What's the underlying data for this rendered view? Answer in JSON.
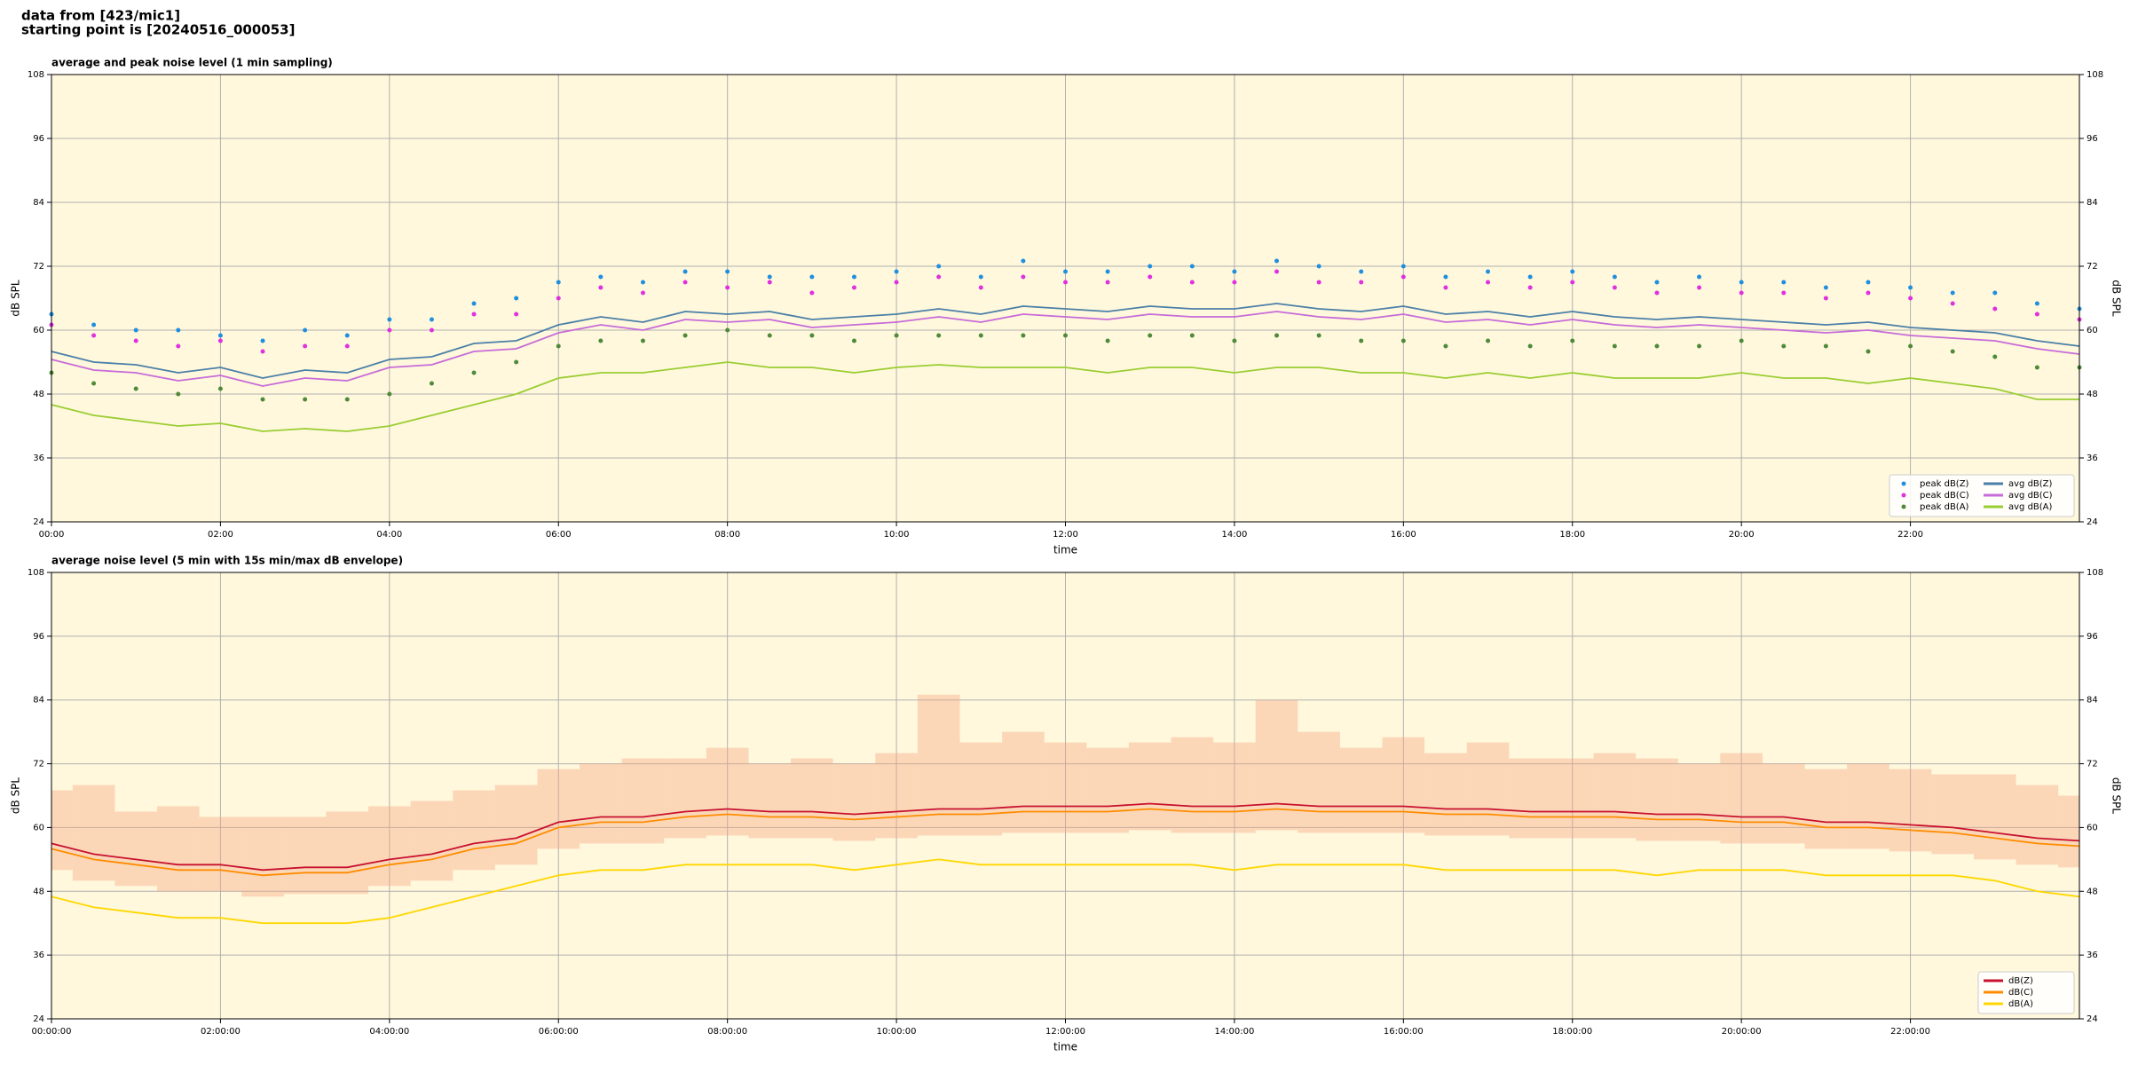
{
  "header": {
    "line1": "data from [423/mic1]",
    "line2": "starting point is [20240516_000053]"
  },
  "chart_data": [
    {
      "type": "line",
      "title": "average and peak noise level (1 min sampling)",
      "xlabel": "time",
      "ylabel": "dB SPL",
      "x": [
        0,
        0.5,
        1,
        1.5,
        2,
        2.5,
        3,
        3.5,
        4,
        4.5,
        5,
        5.5,
        6,
        6.5,
        7,
        7.5,
        8,
        8.5,
        9,
        9.5,
        10,
        10.5,
        11,
        11.5,
        12,
        12.5,
        13,
        13.5,
        14,
        14.5,
        15,
        15.5,
        16,
        16.5,
        17,
        17.5,
        18,
        18.5,
        19,
        19.5,
        20,
        20.5,
        21,
        21.5,
        22,
        22.5,
        23,
        23.5,
        24
      ],
      "xlim": [
        0,
        24
      ],
      "xticks": [
        {
          "value": 0,
          "label": "00:00"
        },
        {
          "value": 2,
          "label": "02:00"
        },
        {
          "value": 4,
          "label": "04:00"
        },
        {
          "value": 6,
          "label": "06:00"
        },
        {
          "value": 8,
          "label": "08:00"
        },
        {
          "value": 10,
          "label": "10:00"
        },
        {
          "value": 12,
          "label": "12:00"
        },
        {
          "value": 14,
          "label": "14:00"
        },
        {
          "value": 16,
          "label": "16:00"
        },
        {
          "value": 18,
          "label": "18:00"
        },
        {
          "value": 20,
          "label": "20:00"
        },
        {
          "value": 22,
          "label": "22:00"
        }
      ],
      "ylim": [
        24,
        108
      ],
      "yticks": [
        24,
        36,
        48,
        60,
        72,
        84,
        96,
        108
      ],
      "grid": true,
      "background": "#fff8dc",
      "legend": "lower right",
      "legend_columns": 2,
      "series": [
        {
          "name": "peak dB(Z)",
          "type": "scatter",
          "color": "#1f8fe0",
          "values": [
            63,
            61,
            60,
            60,
            59,
            58,
            60,
            59,
            62,
            62,
            65,
            66,
            69,
            70,
            69,
            71,
            71,
            70,
            70,
            70,
            71,
            72,
            70,
            73,
            71,
            71,
            72,
            72,
            71,
            73,
            72,
            71,
            72,
            70,
            71,
            70,
            71,
            70,
            69,
            70,
            69,
            69,
            68,
            69,
            68,
            67,
            67,
            65,
            64
          ]
        },
        {
          "name": "peak dB(C)",
          "type": "scatter",
          "color": "#e030e0",
          "values": [
            61,
            59,
            58,
            57,
            58,
            56,
            57,
            57,
            60,
            60,
            63,
            63,
            66,
            68,
            67,
            69,
            68,
            69,
            67,
            68,
            69,
            70,
            68,
            70,
            69,
            69,
            70,
            69,
            69,
            71,
            69,
            69,
            70,
            68,
            69,
            68,
            69,
            68,
            67,
            68,
            67,
            67,
            66,
            67,
            66,
            65,
            64,
            63,
            62
          ]
        },
        {
          "name": "peak dB(A)",
          "type": "scatter",
          "color": "#4f8a3a",
          "values": [
            52,
            50,
            49,
            48,
            49,
            47,
            47,
            47,
            48,
            50,
            52,
            54,
            57,
            58,
            58,
            59,
            60,
            59,
            59,
            58,
            59,
            59,
            59,
            59,
            59,
            58,
            59,
            59,
            58,
            59,
            59,
            58,
            58,
            57,
            58,
            57,
            58,
            57,
            57,
            57,
            58,
            57,
            57,
            56,
            57,
            56,
            55,
            53,
            53
          ]
        },
        {
          "name": "avg dB(Z)",
          "type": "line",
          "color": "#4a7fa8",
          "values": [
            56,
            54,
            53.5,
            52,
            53,
            51,
            52.5,
            52,
            54.5,
            55,
            57.5,
            58,
            61,
            62.5,
            61.5,
            63.5,
            63,
            63.5,
            62,
            62.5,
            63,
            64,
            63,
            64.5,
            64,
            63.5,
            64.5,
            64,
            64,
            65,
            64,
            63.5,
            64.5,
            63,
            63.5,
            62.5,
            63.5,
            62.5,
            62,
            62.5,
            62,
            61.5,
            61,
            61.5,
            60.5,
            60,
            59.5,
            58,
            57
          ]
        },
        {
          "name": "avg dB(C)",
          "type": "line",
          "color": "#c76bd9",
          "values": [
            54.5,
            52.5,
            52,
            50.5,
            51.5,
            49.5,
            51,
            50.5,
            53,
            53.5,
            56,
            56.5,
            59.5,
            61,
            60,
            62,
            61.5,
            62,
            60.5,
            61,
            61.5,
            62.5,
            61.5,
            63,
            62.5,
            62,
            63,
            62.5,
            62.5,
            63.5,
            62.5,
            62,
            63,
            61.5,
            62,
            61,
            62,
            61,
            60.5,
            61,
            60.5,
            60,
            59.5,
            60,
            59,
            58.5,
            58,
            56.5,
            55.5
          ]
        },
        {
          "name": "avg dB(A)",
          "type": "line",
          "color": "#9acd32",
          "values": [
            46,
            44,
            43,
            42,
            42.5,
            41,
            41.5,
            41,
            42,
            44,
            46,
            48,
            51,
            52,
            52,
            53,
            54,
            53,
            53,
            52,
            53,
            53.5,
            53,
            53,
            53,
            52,
            53,
            53,
            52,
            53,
            53,
            52,
            52,
            51,
            52,
            51,
            52,
            51,
            51,
            51,
            52,
            51,
            51,
            50,
            51,
            50,
            49,
            47,
            47
          ]
        }
      ]
    },
    {
      "type": "line",
      "title": "average noise level (5 min with 15s min/max dB envelope)",
      "xlabel": "time",
      "ylabel": "dB SPL",
      "x": [
        0,
        0.5,
        1,
        1.5,
        2,
        2.5,
        3,
        3.5,
        4,
        4.5,
        5,
        5.5,
        6,
        6.5,
        7,
        7.5,
        8,
        8.5,
        9,
        9.5,
        10,
        10.5,
        11,
        11.5,
        12,
        12.5,
        13,
        13.5,
        14,
        14.5,
        15,
        15.5,
        16,
        16.5,
        17,
        17.5,
        18,
        18.5,
        19,
        19.5,
        20,
        20.5,
        21,
        21.5,
        22,
        22.5,
        23,
        23.5,
        24
      ],
      "xlim": [
        0,
        24
      ],
      "xticks": [
        {
          "value": 0,
          "label": "00:00:00"
        },
        {
          "value": 2,
          "label": "02:00:00"
        },
        {
          "value": 4,
          "label": "04:00:00"
        },
        {
          "value": 6,
          "label": "06:00:00"
        },
        {
          "value": 8,
          "label": "08:00:00"
        },
        {
          "value": 10,
          "label": "10:00:00"
        },
        {
          "value": 12,
          "label": "12:00:00"
        },
        {
          "value": 14,
          "label": "14:00:00"
        },
        {
          "value": 16,
          "label": "16:00:00"
        },
        {
          "value": 18,
          "label": "18:00:00"
        },
        {
          "value": 20,
          "label": "20:00:00"
        },
        {
          "value": 22,
          "label": "22:00:00"
        }
      ],
      "ylim": [
        24,
        108
      ],
      "yticks": [
        24,
        36,
        48,
        60,
        72,
        84,
        96,
        108
      ],
      "grid": true,
      "background": "#fff8dc",
      "legend": "lower right",
      "legend_columns": 1,
      "envelope": {
        "color": "#f4a582",
        "lower": [
          52,
          50,
          49,
          48,
          48,
          47,
          47.5,
          47.5,
          49,
          50,
          52,
          53,
          56,
          57,
          57,
          58,
          58.5,
          58,
          58,
          57.5,
          58,
          58.5,
          58.5,
          59,
          59,
          59,
          59.5,
          59,
          59,
          59.5,
          59,
          59,
          59,
          58.5,
          58.5,
          58,
          58,
          58,
          57.5,
          57.5,
          57,
          57,
          56,
          56,
          55.5,
          55,
          54,
          53,
          52.5
        ],
        "upper": [
          67,
          68,
          63,
          64,
          62,
          62,
          62,
          63,
          64,
          65,
          67,
          68,
          71,
          72,
          73,
          73,
          75,
          72,
          73,
          72,
          74,
          85,
          76,
          78,
          76,
          75,
          76,
          77,
          76,
          84,
          78,
          75,
          77,
          74,
          76,
          73,
          73,
          74,
          73,
          72,
          74,
          72,
          71,
          72,
          71,
          70,
          70,
          68,
          66
        ]
      },
      "series": [
        {
          "name": "dB(Z)",
          "type": "line",
          "color": "#c8102e",
          "values": [
            57,
            55,
            54,
            53,
            53,
            52,
            52.5,
            52.5,
            54,
            55,
            57,
            58,
            61,
            62,
            62,
            63,
            63.5,
            63,
            63,
            62.5,
            63,
            63.5,
            63.5,
            64,
            64,
            64,
            64.5,
            64,
            64,
            64.5,
            64,
            64,
            64,
            63.5,
            63.5,
            63,
            63,
            63,
            62.5,
            62.5,
            62,
            62,
            61,
            61,
            60.5,
            60,
            59,
            58,
            57.5
          ]
        },
        {
          "name": "dB(C)",
          "type": "line",
          "color": "#ff8c00",
          "values": [
            56,
            54,
            53,
            52,
            52,
            51,
            51.5,
            51.5,
            53,
            54,
            56,
            57,
            60,
            61,
            61,
            62,
            62.5,
            62,
            62,
            61.5,
            62,
            62.5,
            62.5,
            63,
            63,
            63,
            63.5,
            63,
            63,
            63.5,
            63,
            63,
            63,
            62.5,
            62.5,
            62,
            62,
            62,
            61.5,
            61.5,
            61,
            61,
            60,
            60,
            59.5,
            59,
            58,
            57,
            56.5
          ]
        },
        {
          "name": "dB(A)",
          "type": "line",
          "color": "#ffd700",
          "values": [
            47,
            45,
            44,
            43,
            43,
            42,
            42,
            42,
            43,
            45,
            47,
            49,
            51,
            52,
            52,
            53,
            53,
            53,
            53,
            52,
            53,
            54,
            53,
            53,
            53,
            53,
            53,
            53,
            52,
            53,
            53,
            53,
            53,
            52,
            52,
            52,
            52,
            52,
            51,
            52,
            52,
            52,
            51,
            51,
            51,
            51,
            50,
            48,
            47
          ]
        }
      ]
    }
  ]
}
